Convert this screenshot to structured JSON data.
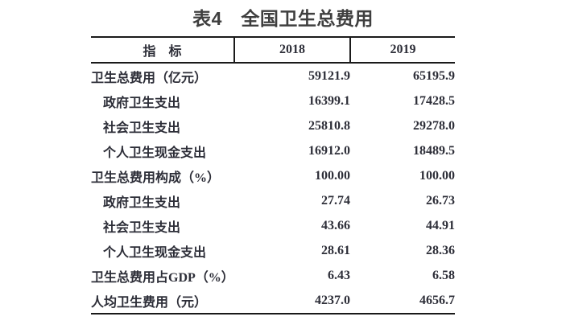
{
  "title": "表4　全国卫生总费用",
  "colors": {
    "page_bg": "#ffffff",
    "text": "#2d2e38",
    "title_text": "#3f3f3f",
    "border": "#1a1a1a"
  },
  "table": {
    "columns": [
      "指　标",
      "2018",
      "2019"
    ],
    "rows": [
      {
        "label": "卫生总费用（亿元）",
        "indent": 0,
        "v2018": "59121.9",
        "v2019": "65195.9"
      },
      {
        "label": "政府卫生支出",
        "indent": 1,
        "v2018": "16399.1",
        "v2019": "17428.5"
      },
      {
        "label": "社会卫生支出",
        "indent": 1,
        "v2018": "25810.8",
        "v2019": "29278.0"
      },
      {
        "label": "个人卫生现金支出",
        "indent": 1,
        "v2018": "16912.0",
        "v2019": "18489.5"
      },
      {
        "label": "卫生总费用构成（%）",
        "indent": 0,
        "v2018": "100.00",
        "v2019": "100.00"
      },
      {
        "label": "政府卫生支出",
        "indent": 1,
        "v2018": "27.74",
        "v2019": "26.73"
      },
      {
        "label": "社会卫生支出",
        "indent": 1,
        "v2018": "43.66",
        "v2019": "44.91"
      },
      {
        "label": "个人卫生现金支出",
        "indent": 1,
        "v2018": "28.61",
        "v2019": "28.36"
      },
      {
        "label": "卫生总费用占GDP（%）",
        "indent": 0,
        "v2018": "6.43",
        "v2019": "6.58"
      },
      {
        "label": "人均卫生费用（元）",
        "indent": 0,
        "v2018": "4237.0",
        "v2019": "4656.7"
      }
    ]
  },
  "chart_data": {
    "type": "table",
    "title": "表4　全国卫生总费用",
    "categories": [
      "卫生总费用（亿元）",
      "政府卫生支出",
      "社会卫生支出",
      "个人卫生现金支出",
      "卫生总费用构成（%）",
      "政府卫生支出",
      "社会卫生支出",
      "个人卫生现金支出",
      "卫生总费用占GDP（%）",
      "人均卫生费用（元）"
    ],
    "series": [
      {
        "name": "2018",
        "values": [
          59121.9,
          16399.1,
          25810.8,
          16912.0,
          100.0,
          27.74,
          43.66,
          28.61,
          6.43,
          4237.0
        ]
      },
      {
        "name": "2019",
        "values": [
          65195.9,
          17428.5,
          29278.0,
          18489.5,
          100.0,
          26.73,
          44.91,
          28.36,
          6.58,
          4656.7
        ]
      }
    ]
  }
}
